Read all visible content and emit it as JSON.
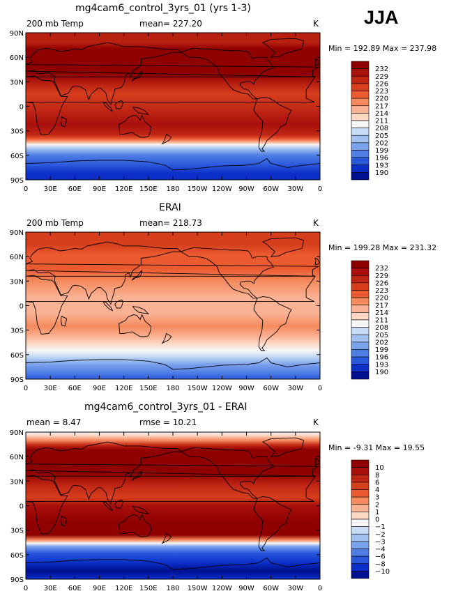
{
  "season": "JJA",
  "x_ticks": [
    "0",
    "30E",
    "60E",
    "90E",
    "120E",
    "150E",
    "180",
    "150W",
    "120W",
    "90W",
    "60W",
    "30W",
    "0"
  ],
  "y_ticks": [
    "90N",
    "60N",
    "30N",
    "0",
    "30S",
    "60S",
    "90S"
  ],
  "panels": [
    {
      "title": "mg4cam6_control_3yrs_01 (yrs 1-3)",
      "left_label": "200 mb Temp",
      "center_label": "mean= 227.20",
      "units": "K",
      "minmax": "Min = 192.89 Max = 237.98",
      "colorbar_labels": [
        "232",
        "229",
        "226",
        "223",
        "220",
        "217",
        "214",
        "211",
        "208",
        "205",
        "202",
        "199",
        "196",
        "193",
        "190"
      ],
      "colorbar_colors": [
        "#8f0000",
        "#a8100c",
        "#c02614",
        "#d63e1c",
        "#ec5a30",
        "#f58a5e",
        "#f9b293",
        "#fcd7c4",
        "#f6f6f6",
        "#c8dcf5",
        "#a3c1f0",
        "#7ba2ec",
        "#4f7ee5",
        "#2a58dc",
        "#0b2fc8",
        "#00108e"
      ],
      "bands": [
        {
          "lat": 90,
          "color": "#b82010"
        },
        {
          "lat": 78,
          "color": "#b82010"
        },
        {
          "lat": 70,
          "color": "#8f0000"
        },
        {
          "lat": 40,
          "color": "#8f0000"
        },
        {
          "lat": 25,
          "color": "#c02614"
        },
        {
          "lat": 15,
          "color": "#d63e1c"
        },
        {
          "lat": -5,
          "color": "#c02614"
        },
        {
          "lat": -22,
          "color": "#a8100c"
        },
        {
          "lat": -35,
          "color": "#c02614"
        },
        {
          "lat": -40,
          "color": "#ec5a30"
        },
        {
          "lat": -44,
          "color": "#f9b293"
        },
        {
          "lat": -47,
          "color": "#f6f6f6"
        },
        {
          "lat": -52,
          "color": "#a3c1f0"
        },
        {
          "lat": -60,
          "color": "#4f7ee5"
        },
        {
          "lat": -72,
          "color": "#2a58dc"
        },
        {
          "lat": -82,
          "color": "#0b2fc8"
        },
        {
          "lat": -90,
          "color": "#0b2fc8"
        }
      ]
    },
    {
      "title": "ERAI",
      "left_label": "200 mb Temp",
      "center_label": "mean= 218.73",
      "units": "K",
      "minmax": "Min = 199.28 Max = 231.32",
      "colorbar_labels": [
        "232",
        "229",
        "226",
        "223",
        "220",
        "217",
        "214",
        "211",
        "208",
        "205",
        "202",
        "199",
        "196",
        "193",
        "190"
      ],
      "colorbar_colors": [
        "#8f0000",
        "#a8100c",
        "#c02614",
        "#d63e1c",
        "#ec5a30",
        "#f58a5e",
        "#f9b293",
        "#fcd7c4",
        "#f6f6f6",
        "#c8dcf5",
        "#a3c1f0",
        "#7ba2ec",
        "#4f7ee5",
        "#2a58dc",
        "#0b2fc8",
        "#00108e"
      ],
      "bands": [
        {
          "lat": 90,
          "color": "#d63e1c"
        },
        {
          "lat": 75,
          "color": "#d63e1c"
        },
        {
          "lat": 62,
          "color": "#ec5a30"
        },
        {
          "lat": 45,
          "color": "#ec5a30"
        },
        {
          "lat": 30,
          "color": "#f58a5e"
        },
        {
          "lat": 10,
          "color": "#f9b293"
        },
        {
          "lat": -10,
          "color": "#f9b293"
        },
        {
          "lat": -25,
          "color": "#f58a5e"
        },
        {
          "lat": -38,
          "color": "#f9b293"
        },
        {
          "lat": -46,
          "color": "#fcd7c4"
        },
        {
          "lat": -55,
          "color": "#f6f6f6"
        },
        {
          "lat": -62,
          "color": "#c8dcf5"
        },
        {
          "lat": -72,
          "color": "#7ba2ec"
        },
        {
          "lat": -82,
          "color": "#4f7ee5"
        },
        {
          "lat": -90,
          "color": "#2a58dc"
        }
      ]
    },
    {
      "title": "mg4cam6_control_3yrs_01 - ERAI",
      "left_label": "mean =  8.47",
      "center_label": "rmse =  10.21",
      "units": "K",
      "minmax": "Min =  -9.31 Max =  19.55",
      "colorbar_labels": [
        "10",
        "8",
        "6",
        "4",
        "3",
        "2",
        "1",
        "0",
        "−1",
        "−2",
        "−3",
        "−4",
        "−6",
        "−8",
        "−10"
      ],
      "colorbar_colors": [
        "#8f0000",
        "#a8100c",
        "#c02614",
        "#d63e1c",
        "#ec5a30",
        "#f58a5e",
        "#f9b293",
        "#fcd7c4",
        "#f6f6f6",
        "#c8dcf5",
        "#a3c1f0",
        "#7ba2ec",
        "#4f7ee5",
        "#2a58dc",
        "#0b2fc8",
        "#00108e"
      ],
      "bands": [
        {
          "lat": 90,
          "color": "#f6f6f6"
        },
        {
          "lat": 86,
          "color": "#fcd7c4"
        },
        {
          "lat": 80,
          "color": "#f58a5e"
        },
        {
          "lat": 74,
          "color": "#c02614"
        },
        {
          "lat": 68,
          "color": "#8f0000"
        },
        {
          "lat": 40,
          "color": "#8f0000"
        },
        {
          "lat": 25,
          "color": "#c02614"
        },
        {
          "lat": 10,
          "color": "#d63e1c"
        },
        {
          "lat": 0,
          "color": "#a8100c"
        },
        {
          "lat": -20,
          "color": "#8f0000"
        },
        {
          "lat": -36,
          "color": "#8f0000"
        },
        {
          "lat": -42,
          "color": "#f58a5e"
        },
        {
          "lat": -46,
          "color": "#f6f6f6"
        },
        {
          "lat": -50,
          "color": "#7ba2ec"
        },
        {
          "lat": -58,
          "color": "#2a58dc"
        },
        {
          "lat": -70,
          "color": "#0b2fc8"
        },
        {
          "lat": -80,
          "color": "#00108e"
        },
        {
          "lat": -90,
          "color": "#0b2fc8"
        }
      ]
    }
  ]
}
